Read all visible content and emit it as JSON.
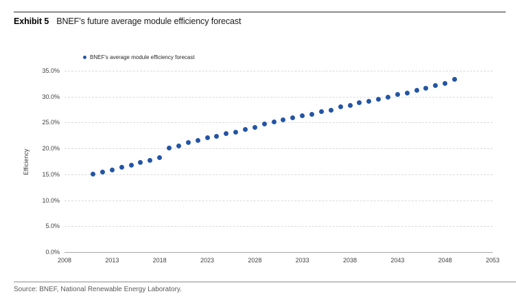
{
  "header": {
    "exhibit_label": "Exhibit 5",
    "title": "BNEF’s future average module efficiency forecast"
  },
  "legend": {
    "label": "BNEF's average module efficiency forecast"
  },
  "footer": {
    "source": "Source: BNEF, National Renewable Energy Laboratory."
  },
  "colors": {
    "dot_blue": "#2355a4",
    "gridline": "#d9d9d9",
    "axis_line": "#a6a6a6",
    "tick_text": "#404040",
    "source_text": "#595959"
  },
  "chart_data": {
    "type": "scatter",
    "title": "BNEF’s future average module efficiency forecast",
    "xlabel": "",
    "ylabel": "Efficiency",
    "xlim": [
      2008,
      2053
    ],
    "ylim": [
      0,
      35
    ],
    "grid": "horizontal-dashed",
    "legend_position": "top-left",
    "x_ticks": [
      2008,
      2013,
      2018,
      2023,
      2028,
      2033,
      2038,
      2043,
      2048,
      2053
    ],
    "y_tick_values": [
      0,
      5,
      10,
      15,
      20,
      25,
      30,
      35
    ],
    "y_tick_labels": [
      "0.0%",
      "5.0%",
      "10.0%",
      "15.0%",
      "20.0%",
      "25.0%",
      "30.0%",
      "35.0%"
    ],
    "series": [
      {
        "name": "BNEF's average module efficiency forecast",
        "x": [
          2011,
          2012,
          2013,
          2014,
          2015,
          2016,
          2017,
          2018,
          2019,
          2020,
          2021,
          2022,
          2023,
          2024,
          2025,
          2026,
          2027,
          2028,
          2029,
          2030,
          2031,
          2032,
          2033,
          2034,
          2035,
          2036,
          2037,
          2038,
          2039,
          2040,
          2041,
          2042,
          2043,
          2044,
          2045,
          2046,
          2047,
          2048,
          2049
        ],
        "y": [
          15.1,
          15.5,
          15.9,
          16.4,
          16.8,
          17.3,
          17.7,
          18.2,
          20.1,
          20.5,
          21.2,
          21.6,
          22.1,
          22.4,
          22.9,
          23.2,
          23.7,
          24.0,
          24.7,
          25.1,
          25.5,
          25.9,
          26.3,
          26.6,
          27.1,
          27.4,
          28.0,
          28.3,
          28.8,
          29.1,
          29.5,
          29.9,
          30.4,
          30.7,
          31.2,
          31.6,
          32.2,
          32.6,
          33.4
        ]
      }
    ]
  }
}
